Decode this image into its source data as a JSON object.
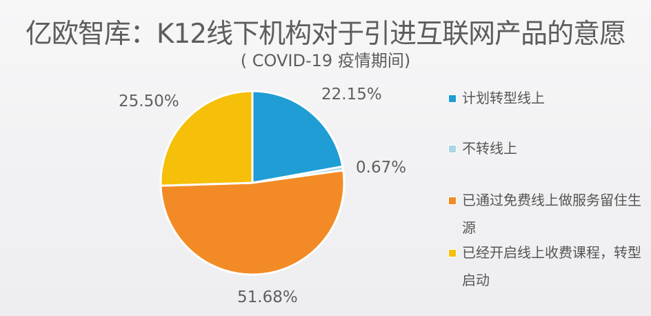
{
  "header": {
    "title": "亿欧智库：K12线下机构对于引进互联网产品的意愿",
    "subtitle": "( COVID-19 疫情期间)"
  },
  "legend": {
    "items": [
      {
        "label": "计划转型线上",
        "color": "#1f9dd4"
      },
      {
        "label": "不转线上",
        "color": "#a9d7e6"
      },
      {
        "label": "已通过免费线上做服务留住生源",
        "color": "#f28b25"
      },
      {
        "label": "已经开启线上收费课程，转型启动",
        "color": "#f5bf0a"
      }
    ]
  },
  "labels": {
    "plan_online": "22.15%",
    "not_online": "0.67%",
    "free_online": "51.68%",
    "paid_online": "25.50%"
  },
  "chart_data": {
    "type": "pie",
    "title": "亿欧智库：K12线下机构对于引进互联网产品的意愿",
    "subtitle": "( COVID-19 疫情期间)",
    "categories": [
      "计划转型线上",
      "不转线上",
      "已通过免费线上做服务留住生源",
      "已经开启线上收费课程，转型启动"
    ],
    "values": [
      22.15,
      0.67,
      51.68,
      25.5
    ],
    "colors": [
      "#1f9dd4",
      "#a9d7e6",
      "#f28b25",
      "#f5bf0a"
    ],
    "start_angle": "12 o'clock, clockwise",
    "legend_position": "right"
  }
}
